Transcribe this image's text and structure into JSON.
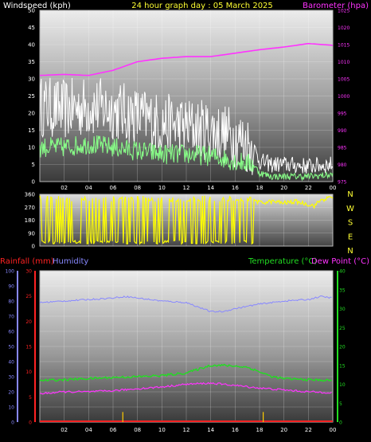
{
  "title": "24 hour graph day : 05 March 2025",
  "colors": {
    "windspeed_label": "#ffffff",
    "title": "#ffff33",
    "barometer": "#ff33ff",
    "gust": "#ffffff",
    "wind_avg": "#88ff88",
    "direction": "#ffff00",
    "rain": "#ff2222",
    "humidity": "#8888ff",
    "temperature": "#22dd22",
    "dewpoint": "#ff33ff",
    "axis_dir": "#ffff33"
  },
  "chart_data": [
    {
      "type": "line",
      "name": "wind-baro",
      "labels": {
        "left": "Windspeed (kph)",
        "right": "Barometer (hpa)"
      },
      "x_ticks": [
        "02",
        "04",
        "06",
        "08",
        "10",
        "12",
        "14",
        "16",
        "18",
        "20",
        "22",
        "00"
      ],
      "xlim_hours": [
        0,
        24
      ],
      "y_left": {
        "ylim": [
          0,
          50
        ],
        "ticks": [
          "0",
          "5",
          "10",
          "15",
          "20",
          "25",
          "30",
          "35",
          "40",
          "45",
          "50"
        ]
      },
      "y_right": {
        "ylim": [
          975,
          1025
        ],
        "ticks": [
          "975",
          "980",
          "985",
          "990",
          "995",
          "1000",
          "1005",
          "1010",
          "1015",
          "1020",
          "1025"
        ]
      },
      "series": [
        {
          "key": "barometer",
          "axis": "right",
          "x": [
            0,
            2,
            4,
            6,
            8,
            10,
            12,
            14,
            16,
            18,
            20,
            22,
            24
          ],
          "y": [
            1006,
            1006.3,
            1006,
            1007.5,
            1010,
            1011,
            1011.5,
            1011.5,
            1012.5,
            1013.5,
            1014.3,
            1015.3,
            1014.8
          ]
        },
        {
          "key": "gust",
          "axis": "left",
          "x": [
            0,
            2,
            4,
            6,
            8,
            10,
            12,
            14,
            16,
            17.5,
            18,
            19,
            20,
            22,
            24
          ],
          "y": [
            22,
            21,
            22,
            21,
            19,
            17,
            16,
            15,
            13,
            10,
            6,
            5,
            5,
            4.5,
            5
          ]
        },
        {
          "key": "wind_avg",
          "axis": "left",
          "x": [
            0,
            2,
            4,
            6,
            8,
            10,
            12,
            14,
            16,
            17.5,
            18,
            19,
            20,
            22,
            24
          ],
          "y": [
            10,
            10,
            11,
            10,
            9,
            8,
            8,
            7.5,
            6,
            5,
            2.5,
            1.5,
            1.5,
            1.5,
            2
          ]
        }
      ]
    },
    {
      "type": "line",
      "name": "wind-direction",
      "x_ticks": [
        "02",
        "04",
        "06",
        "08",
        "10",
        "12",
        "14",
        "16",
        "18",
        "20",
        "22",
        "00"
      ],
      "y": {
        "ylim": [
          0,
          360
        ],
        "ticks": [
          "0",
          "90",
          "180",
          "270",
          "360"
        ]
      },
      "compass": [
        "N",
        "W",
        "S",
        "E",
        "N"
      ],
      "series": [
        {
          "key": "direction",
          "segments": [
            {
              "x_start": 0,
              "x_end": 17.6,
              "mode": "oscillating",
              "low": 15,
              "high": 350
            },
            {
              "x_start": 17.6,
              "x_end": 24,
              "mode": "steady",
              "x": [
                17.6,
                18,
                19,
                20,
                21,
                22,
                22.5,
                23,
                24
              ],
              "y": [
                320,
                300,
                310,
                300,
                310,
                290,
                280,
                320,
                340
              ]
            }
          ]
        }
      ]
    },
    {
      "type": "line",
      "name": "rain-humidity-temp",
      "labels": {
        "rainfall": "Rainfall (mm)",
        "humidity": "Humidity",
        "temperature": "Temperature (°C)",
        "dewpoint": "Dew Point (°C)"
      },
      "x_ticks": [
        "02",
        "04",
        "06",
        "08",
        "10",
        "12",
        "14",
        "16",
        "18",
        "20",
        "22",
        "00"
      ],
      "y_humidity": {
        "ylim": [
          0,
          100
        ],
        "ticks": [
          "0",
          "10",
          "20",
          "30",
          "40",
          "50",
          "60",
          "70",
          "80",
          "90",
          "100"
        ]
      },
      "y_rain": {
        "ylim": [
          0,
          30
        ],
        "ticks": [
          "0",
          "5",
          "10",
          "15",
          "20",
          "25",
          "30"
        ]
      },
      "y_temp": {
        "ylim": [
          0,
          40
        ],
        "ticks": [
          "0",
          "5",
          "10",
          "15",
          "20",
          "25",
          "30",
          "35",
          "40"
        ]
      },
      "series": [
        {
          "key": "humidity",
          "axis": "humidity",
          "x": [
            0,
            2,
            4,
            6,
            7,
            8,
            10,
            12,
            14,
            15,
            16,
            18,
            20,
            22,
            23,
            24
          ],
          "y": [
            79,
            80,
            81,
            82,
            83,
            82,
            80,
            79,
            73,
            73,
            75,
            78,
            80,
            81,
            83,
            82
          ]
        },
        {
          "key": "temperature",
          "axis": "temp",
          "x": [
            0,
            2,
            4,
            6,
            8,
            10,
            12,
            13,
            14,
            15,
            16,
            17,
            18,
            19,
            20,
            22,
            24
          ],
          "y": [
            11,
            11.2,
            11.5,
            11.8,
            12,
            12.3,
            13,
            14,
            15,
            15,
            14.8,
            14.5,
            13.3,
            12,
            11.5,
            11.2,
            11
          ]
        },
        {
          "key": "dewpoint",
          "axis": "temp",
          "x": [
            0,
            2,
            4,
            6,
            8,
            10,
            12,
            14,
            15,
            16,
            18,
            20,
            22,
            24
          ],
          "y": [
            7.5,
            8,
            8,
            8.3,
            8.8,
            9.3,
            10,
            10.3,
            10,
            9.7,
            9,
            8.5,
            8,
            7.8
          ]
        },
        {
          "key": "rain",
          "axis": "rain",
          "x": [
            0,
            24
          ],
          "y": [
            0,
            0
          ]
        }
      ],
      "rain_events": [
        {
          "x": 6.8,
          "value": 2
        },
        {
          "x": 18.3,
          "value": 2
        }
      ]
    }
  ]
}
